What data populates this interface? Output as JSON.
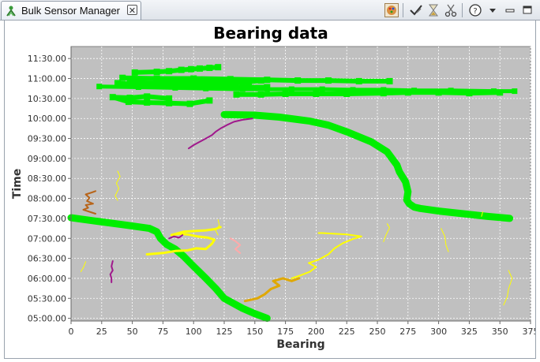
{
  "window": {
    "tab_title": "Bulk Sensor Manager",
    "tab_icon": "sensor-icon",
    "close_icon": "close-icon",
    "toolbar_icons": [
      "palette-icon",
      "check-edit-icon",
      "hourglass-icon",
      "scissors-icon",
      "help-icon",
      "view-menu-icon",
      "minimize-icon",
      "maximize-icon"
    ]
  },
  "chart_data": {
    "type": "line",
    "title": "Bearing data",
    "xlabel": "Bearing",
    "ylabel": "Time",
    "xlim": [
      0,
      375
    ],
    "ylim": [
      296,
      708
    ],
    "x_ticks": [
      0,
      25,
      50,
      75,
      100,
      125,
      150,
      175,
      200,
      225,
      250,
      275,
      300,
      325,
      350,
      375
    ],
    "y_ticks": [
      300,
      330,
      360,
      390,
      420,
      450,
      480,
      510,
      540,
      570,
      600,
      630,
      660,
      690
    ],
    "y_tick_labels": [
      "05:00.00",
      "05:30.00",
      "06:00.00",
      "06:30.00",
      "07:00.00",
      "07:30.00",
      "08:00.00",
      "08:30.00",
      "09:00.00",
      "09:30.00",
      "10:00.00",
      "10:30.00",
      "11:00.00",
      "11:30.00"
    ],
    "grid": true,
    "plot_background": "#c0c0c0",
    "series": [
      {
        "color": "#00ee00",
        "width": 9,
        "points": [
          [
            160,
            300
          ],
          [
            150,
            307
          ],
          [
            140,
            315
          ],
          [
            125,
            330
          ],
          [
            118,
            345
          ],
          [
            110,
            360
          ],
          [
            100,
            378
          ],
          [
            92,
            393
          ],
          [
            85,
            404
          ],
          [
            78,
            411
          ],
          [
            73,
            420
          ],
          [
            70,
            430
          ],
          [
            64,
            435
          ],
          [
            45,
            440
          ],
          [
            20,
            446
          ],
          [
            0,
            451
          ]
        ]
      },
      {
        "color": "#00ee00",
        "width": 9,
        "points": [
          [
            358,
            450
          ],
          [
            340,
            453
          ],
          [
            320,
            457
          ],
          [
            300,
            461
          ],
          [
            285,
            465
          ],
          [
            280,
            467
          ],
          [
            276,
            472
          ],
          [
            274,
            478
          ],
          [
            275,
            490
          ],
          [
            273,
            505
          ],
          [
            268,
            520
          ],
          [
            266,
            530
          ],
          [
            262,
            540
          ],
          [
            258,
            550
          ],
          [
            245,
            565
          ],
          [
            225,
            580
          ],
          [
            210,
            590
          ],
          [
            195,
            596
          ],
          [
            170,
            602
          ],
          [
            150,
            605
          ],
          [
            125,
            606
          ]
        ]
      },
      {
        "color": "#00ee00",
        "width": 6,
        "markers": true,
        "points": [
          [
            113,
            627
          ],
          [
            97,
            622
          ],
          [
            80,
            623
          ],
          [
            62,
            624
          ],
          [
            47,
            625
          ],
          [
            34,
            632
          ],
          [
            48,
            631
          ],
          [
            62,
            633
          ],
          [
            80,
            630
          ]
        ]
      },
      {
        "color": "#00ee00",
        "width": 6,
        "markers": true,
        "points": [
          [
            350,
            639
          ],
          [
            325,
            638
          ],
          [
            300,
            639
          ],
          [
            275,
            639
          ],
          [
            255,
            638
          ],
          [
            225,
            637
          ],
          [
            200,
            637
          ],
          [
            175,
            637
          ],
          [
            155,
            636
          ],
          [
            135,
            636
          ]
        ]
      },
      {
        "color": "#00ee00",
        "width": 6,
        "markers": true,
        "points": [
          [
            38,
            653
          ],
          [
            65,
            650
          ],
          [
            90,
            649
          ],
          [
            115,
            647
          ],
          [
            140,
            647
          ],
          [
            160,
            647
          ]
        ]
      },
      {
        "color": "#00ee00",
        "width": 5,
        "markers": true,
        "points": [
          [
            23,
            648
          ],
          [
            55,
            647
          ],
          [
            85,
            646
          ],
          [
            110,
            645
          ],
          [
            140,
            644
          ],
          [
            160,
            644
          ],
          [
            180,
            644
          ],
          [
            205,
            644
          ],
          [
            230,
            643
          ],
          [
            255,
            643
          ],
          [
            280,
            642
          ],
          [
            310,
            642
          ],
          [
            345,
            641
          ],
          [
            362,
            641
          ]
        ]
      },
      {
        "color": "#00ee00",
        "width": 6,
        "markers": true,
        "points": [
          [
            42,
            661
          ],
          [
            70,
            660
          ],
          [
            100,
            660
          ],
          [
            130,
            659
          ],
          [
            160,
            658
          ],
          [
            185,
            657
          ],
          [
            210,
            657
          ],
          [
            235,
            656
          ],
          [
            260,
            656
          ]
        ]
      },
      {
        "color": "#00ee00",
        "width": 6,
        "markers": true,
        "points": [
          [
            48,
            654
          ],
          [
            75,
            653
          ],
          [
            100,
            655
          ],
          [
            125,
            653
          ],
          [
            145,
            655
          ],
          [
            155,
            657
          ]
        ]
      },
      {
        "color": "#00ee00",
        "width": 6,
        "markers": true,
        "points": [
          [
            52,
            669
          ],
          [
            70,
            670
          ],
          [
            80,
            671
          ],
          [
            90,
            673
          ],
          [
            98,
            674
          ],
          [
            105,
            675
          ],
          [
            113,
            676
          ],
          [
            120,
            677
          ]
        ]
      },
      {
        "color": "#ffff00",
        "width": 3,
        "points": [
          [
            62,
            396
          ],
          [
            75,
            398
          ],
          [
            85,
            401
          ],
          [
            95,
            402
          ],
          [
            102,
            405
          ],
          [
            110,
            404
          ],
          [
            115,
            412
          ],
          [
            117,
            418
          ],
          [
            112,
            421
          ],
          [
            103,
            423
          ],
          [
            95,
            426
          ],
          [
            88,
            427
          ],
          [
            82,
            425
          ],
          [
            92,
            430
          ],
          [
            100,
            431
          ],
          [
            110,
            432
          ],
          [
            118,
            434
          ],
          [
            122,
            437
          ]
        ]
      },
      {
        "color": "#ffff00",
        "width": 2,
        "points": [
          [
            180,
            360
          ],
          [
            188,
            365
          ],
          [
            195,
            370
          ],
          [
            200,
            377
          ],
          [
            194,
            383
          ],
          [
            202,
            388
          ],
          [
            210,
            396
          ],
          [
            215,
            405
          ],
          [
            222,
            413
          ],
          [
            230,
            419
          ],
          [
            237,
            423
          ],
          [
            225,
            426
          ],
          [
            205,
            428
          ],
          [
            202,
            428
          ]
        ]
      },
      {
        "color": "#e0a800",
        "width": 3,
        "points": [
          [
            142,
            326
          ],
          [
            152,
            330
          ],
          [
            158,
            336
          ],
          [
            163,
            344
          ],
          [
            170,
            349
          ],
          [
            165,
            356
          ],
          [
            173,
            360
          ],
          [
            180,
            356
          ],
          [
            186,
            360
          ]
        ]
      },
      {
        "color": "#a0188c",
        "width": 2,
        "points": [
          [
            96,
            555
          ],
          [
            100,
            560
          ],
          [
            105,
            565
          ],
          [
            110,
            570
          ],
          [
            115,
            575
          ],
          [
            118,
            580
          ],
          [
            122,
            585
          ],
          [
            127,
            590
          ],
          [
            133,
            595
          ],
          [
            140,
            598
          ],
          [
            148,
            600
          ]
        ]
      },
      {
        "color": "#a0188c",
        "width": 2,
        "points": [
          [
            33,
            354
          ],
          [
            33,
            360
          ],
          [
            32,
            366
          ],
          [
            34,
            372
          ],
          [
            33,
            378
          ],
          [
            34,
            386
          ]
        ]
      },
      {
        "color": "#a0188c",
        "width": 2,
        "points": [
          [
            80,
            420
          ],
          [
            84,
            423
          ],
          [
            88,
            421
          ],
          [
            91,
            425
          ]
        ]
      },
      {
        "color": "#b86418",
        "width": 2,
        "points": [
          [
            20,
            457
          ],
          [
            15,
            460
          ],
          [
            10,
            463
          ],
          [
            14,
            466
          ],
          [
            12,
            470
          ],
          [
            18,
            472
          ],
          [
            13,
            476
          ],
          [
            15,
            481
          ],
          [
            12,
            486
          ],
          [
            17,
            489
          ],
          [
            20,
            491
          ]
        ]
      },
      {
        "color": "#ffaaaa",
        "width": 2,
        "points": [
          [
            130,
            420
          ],
          [
            134,
            416
          ],
          [
            138,
            410
          ],
          [
            134,
            404
          ],
          [
            138,
            398
          ]
        ]
      },
      {
        "color": "#ffff00",
        "width": 1,
        "points": [
          [
            38,
            521
          ],
          [
            40,
            513
          ],
          [
            37,
            503
          ],
          [
            39,
            495
          ],
          [
            36,
            484
          ],
          [
            38,
            477
          ]
        ]
      },
      {
        "color": "#ffff00",
        "width": 1,
        "points": [
          [
            120,
            448
          ],
          [
            121,
            440
          ],
          [
            118,
            432
          ],
          [
            120,
            425
          ]
        ]
      },
      {
        "color": "#ffff00",
        "width": 1,
        "points": [
          [
            8,
            370
          ],
          [
            10,
            376
          ],
          [
            12,
            385
          ]
        ]
      },
      {
        "color": "#ffff00",
        "width": 1,
        "points": [
          [
            255,
            415
          ],
          [
            257,
            425
          ],
          [
            260,
            436
          ],
          [
            258,
            442
          ]
        ]
      },
      {
        "color": "#ffff00",
        "width": 1,
        "points": [
          [
            308,
            400
          ],
          [
            306,
            410
          ],
          [
            305,
            423
          ],
          [
            302,
            435
          ]
        ]
      },
      {
        "color": "#ffff00",
        "width": 1,
        "points": [
          [
            353,
            320
          ],
          [
            356,
            332
          ],
          [
            357,
            344
          ],
          [
            360,
            360
          ],
          [
            357,
            372
          ]
        ]
      },
      {
        "color": "#ffff00",
        "width": 1,
        "points": [
          [
            335,
            453
          ],
          [
            336,
            460
          ]
        ]
      }
    ]
  }
}
